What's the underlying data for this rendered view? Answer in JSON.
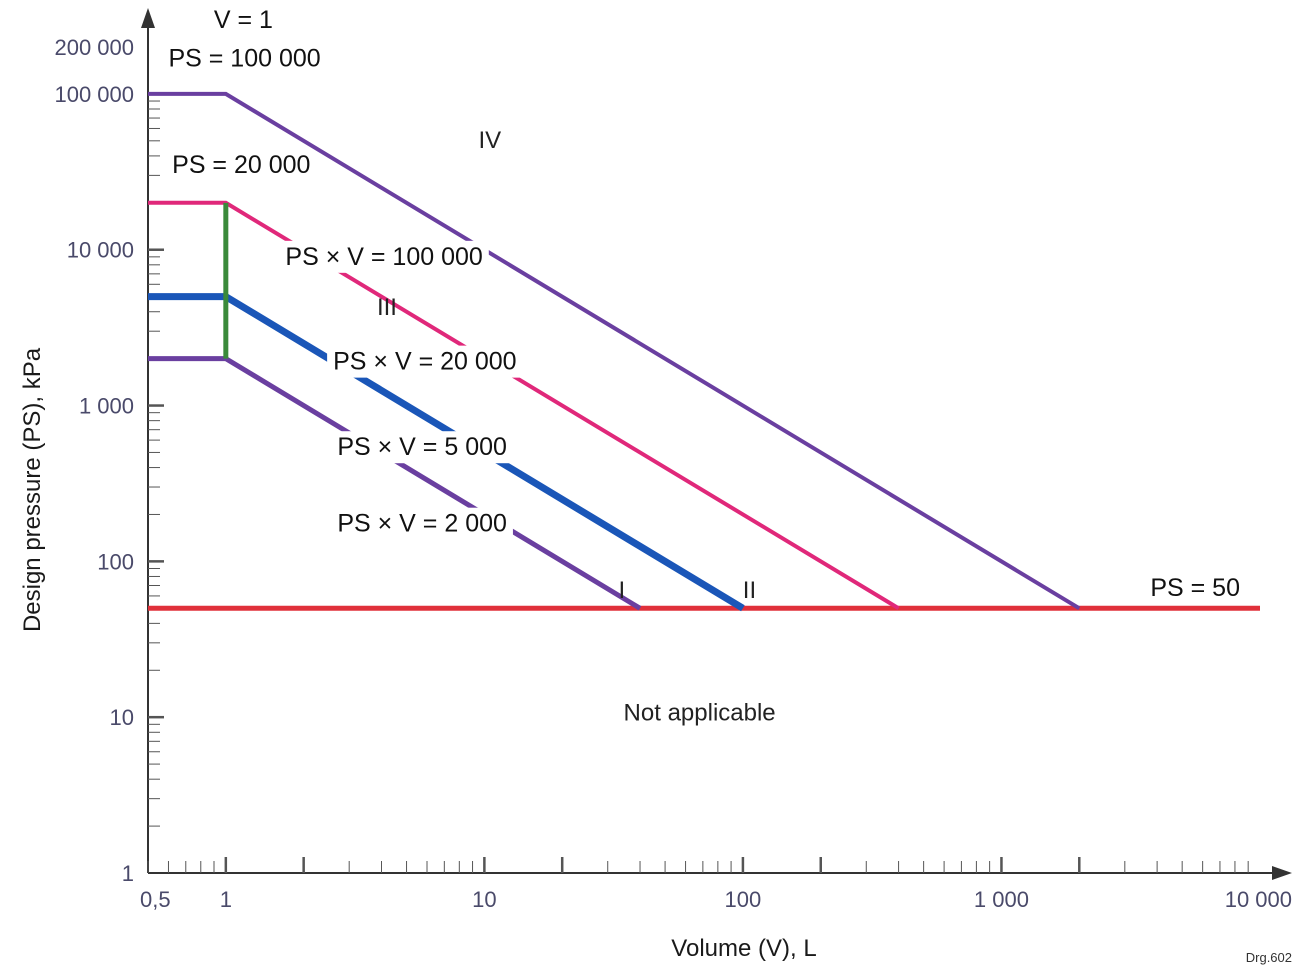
{
  "chart_data": {
    "type": "line",
    "x_scale": "log",
    "y_scale": "log",
    "xlabel": "Volume (V), L",
    "ylabel": "Design pressure (PS), kPa",
    "xlim": [
      0.5,
      10000
    ],
    "ylim": [
      1,
      200000
    ],
    "x_ticks": [
      {
        "value": 0.5,
        "label": "0,5"
      },
      {
        "value": 1,
        "label": "1"
      },
      {
        "value": 10,
        "label": "10"
      },
      {
        "value": 100,
        "label": "100"
      },
      {
        "value": 1000,
        "label": "1 000"
      },
      {
        "value": 10000,
        "label": "10 000"
      }
    ],
    "y_ticks": [
      {
        "value": 200000,
        "label": "200 000"
      },
      {
        "value": 100000,
        "label": "100 000"
      },
      {
        "value": 10000,
        "label": "10 000"
      },
      {
        "value": 1000,
        "label": "1 000"
      },
      {
        "value": 100,
        "label": "100"
      },
      {
        "value": 10,
        "label": "10"
      },
      {
        "value": 1,
        "label": "1"
      }
    ],
    "series": [
      {
        "label": "PS × V = 100 000",
        "color": "#6a3fa0",
        "points": [
          [
            0.5,
            100000
          ],
          [
            1,
            100000
          ],
          [
            2000,
            50
          ]
        ],
        "label_at": [
          1.7,
          8000
        ]
      },
      {
        "label": "PS × V = 20 000",
        "color": "#e0287a",
        "points": [
          [
            0.5,
            20000
          ],
          [
            1,
            20000
          ],
          [
            400,
            50
          ]
        ],
        "label_at": [
          2.6,
          1700
        ]
      },
      {
        "label": "PS × V = 5 000",
        "color": "#1a56b8",
        "points": [
          [
            0.5,
            5000
          ],
          [
            1,
            5000
          ],
          [
            100,
            50
          ]
        ],
        "label_at": [
          2.7,
          480
        ]
      },
      {
        "label": "PS × V = 2 000",
        "color": "#6a3fa0",
        "points": [
          [
            0.5,
            2000
          ],
          [
            1,
            2000
          ],
          [
            40,
            50
          ]
        ],
        "label_at": [
          2.7,
          155
        ]
      }
    ],
    "vertical_line": {
      "label": "V = 1",
      "color": "#3a8a3a",
      "x": 1,
      "y_from": 2000,
      "y_to": 20000
    },
    "horizontal_lines": [
      {
        "label": "PS = 100 000",
        "value": 100000,
        "label_at": [
          0.6,
          150000
        ]
      },
      {
        "label": "PS = 20 000",
        "value": 20000,
        "label_at": [
          0.62,
          31000
        ]
      },
      {
        "label": "PS = 50",
        "value": 50,
        "color": "#e0303a",
        "x_from": 0.5,
        "x_to": 10000,
        "label_at": [
          3500,
          60
        ]
      }
    ],
    "regions": [
      {
        "label": "IV",
        "at": [
          10.5,
          45000
        ]
      },
      {
        "label": "III",
        "at": [
          4.2,
          3800
        ]
      },
      {
        "label": "II",
        "at": [
          106,
          58
        ]
      },
      {
        "label": "I",
        "at": [
          34,
          58
        ]
      },
      {
        "label": "Not applicable",
        "at": [
          68,
          9.5
        ]
      }
    ],
    "legend": "none",
    "grid": false
  },
  "note": "Drg.602"
}
